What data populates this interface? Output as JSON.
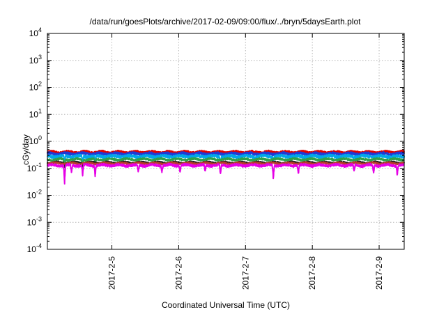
{
  "chart_data": {
    "type": "line",
    "title": "/data/run/goesPlots/archive/2017-02-09/09:00/flux/../bryn/5daysEarth.plot",
    "xlabel": "Coordinated Universal Time (UTC)",
    "ylabel": "cGy/day",
    "yscale": "log",
    "ylim": [
      0.0001,
      10000
    ],
    "xlim": [
      "2017-02-04T00:50",
      "2017-02-09T09:00"
    ],
    "grid": true,
    "legend": "none",
    "x_ticks": [
      {
        "date": "2017-02-05T00:00",
        "label": "2017-2-5"
      },
      {
        "date": "2017-02-06T00:00",
        "label": "2017-2-6"
      },
      {
        "date": "2017-02-07T00:00",
        "label": "2017-2-7"
      },
      {
        "date": "2017-02-08T00:00",
        "label": "2017-2-8"
      },
      {
        "date": "2017-02-09T00:00",
        "label": "2017-2-9"
      }
    ],
    "y_ticks": [
      {
        "value": 10000,
        "base": "10",
        "exp": "4"
      },
      {
        "value": 1000,
        "base": "10",
        "exp": "3"
      },
      {
        "value": 100,
        "base": "10",
        "exp": "2"
      },
      {
        "value": 10,
        "base": "10",
        "exp": "1"
      },
      {
        "value": 1,
        "base": "10",
        "exp": "0"
      },
      {
        "value": 0.1,
        "base": "10",
        "exp": "-1"
      },
      {
        "value": 0.01,
        "base": "10",
        "exp": "-2"
      },
      {
        "value": 0.001,
        "base": "10",
        "exp": "-3"
      },
      {
        "value": 0.0001,
        "base": "10",
        "exp": "-4"
      }
    ],
    "series": [
      {
        "color": "#e00000",
        "level": 0.4,
        "noise": 0.1,
        "dips": []
      },
      {
        "color": "#1e3ad6",
        "level": 0.35,
        "noise": 0.1,
        "dips": []
      },
      {
        "color": "#00a8e8",
        "level": 0.28,
        "noise": 0.12,
        "dips": [
          [
            "2017-02-04T07:00",
            0.6
          ],
          [
            "2017-02-04T13:30",
            0.55
          ],
          [
            "2017-02-04T18:00",
            0.55
          ],
          [
            "2017-02-06T15:00",
            0.65
          ],
          [
            "2017-02-07T10:00",
            0.7
          ]
        ]
      },
      {
        "color": "#2fa24a",
        "level": 0.215,
        "noise": 0.08,
        "dips": [
          [
            "2017-02-04T07:00",
            0.65
          ],
          [
            "2017-02-04T13:30",
            0.6
          ],
          [
            "2017-02-04T18:00",
            0.6
          ]
        ]
      },
      {
        "color": "#202020",
        "level": 0.165,
        "noise": 0.06,
        "dips": [
          [
            "2017-02-04T07:00",
            0.7
          ],
          [
            "2017-02-04T13:30",
            0.65
          ]
        ]
      },
      {
        "color": "#b83a2a",
        "level": 0.155,
        "noise": 0.06,
        "dips": []
      },
      {
        "color": "#e600e6",
        "level": 0.13,
        "noise": 0.1,
        "dips": [
          [
            "2017-02-04T07:00",
            0.18
          ],
          [
            "2017-02-04T09:30",
            0.5
          ],
          [
            "2017-02-04T13:30",
            0.42
          ],
          [
            "2017-02-04T18:00",
            0.42
          ],
          [
            "2017-02-05T09:30",
            0.55
          ],
          [
            "2017-02-05T18:00",
            0.6
          ],
          [
            "2017-02-06T00:30",
            0.6
          ],
          [
            "2017-02-06T09:30",
            0.55
          ],
          [
            "2017-02-06T15:00",
            0.45
          ],
          [
            "2017-02-07T10:00",
            0.3
          ],
          [
            "2017-02-07T19:00",
            0.5
          ],
          [
            "2017-02-08T15:00",
            0.55
          ],
          [
            "2017-02-08T22:00",
            0.5
          ],
          [
            "2017-02-09T06:30",
            0.45
          ]
        ]
      }
    ]
  }
}
